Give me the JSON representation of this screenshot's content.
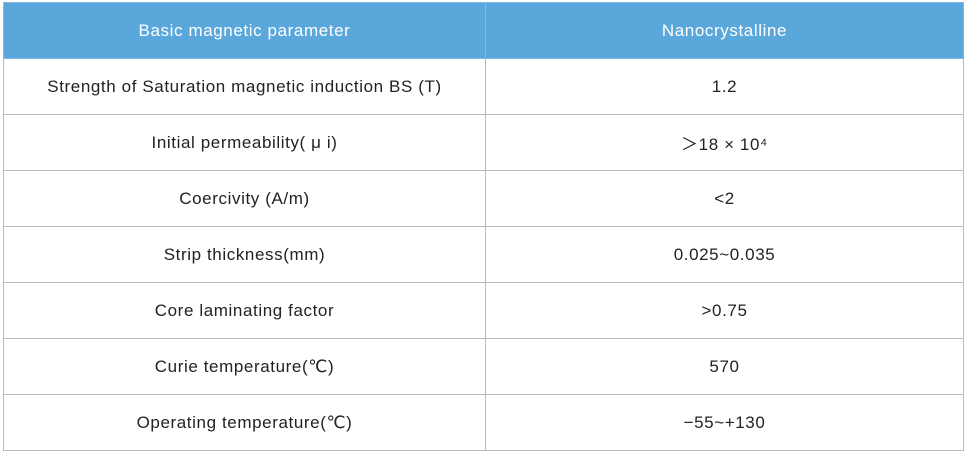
{
  "table": {
    "header": [
      "Basic magnetic parameter",
      "Nanocrystalline"
    ],
    "rows": [
      [
        "Strength of Saturation magnetic induction BS (T)",
        "1.2"
      ],
      [
        "Initial permeability( μ i)",
        "＞18 × 10⁴"
      ],
      [
        "Coercivity (A/m)",
        "<2"
      ],
      [
        "Strip thickness(mm)",
        "0.025~0.035"
      ],
      [
        "Core laminating factor",
        ">0.75"
      ],
      [
        "Curie temperature(℃)",
        "570"
      ],
      [
        "Operating temperature(℃)",
        "−55~+130"
      ]
    ]
  }
}
